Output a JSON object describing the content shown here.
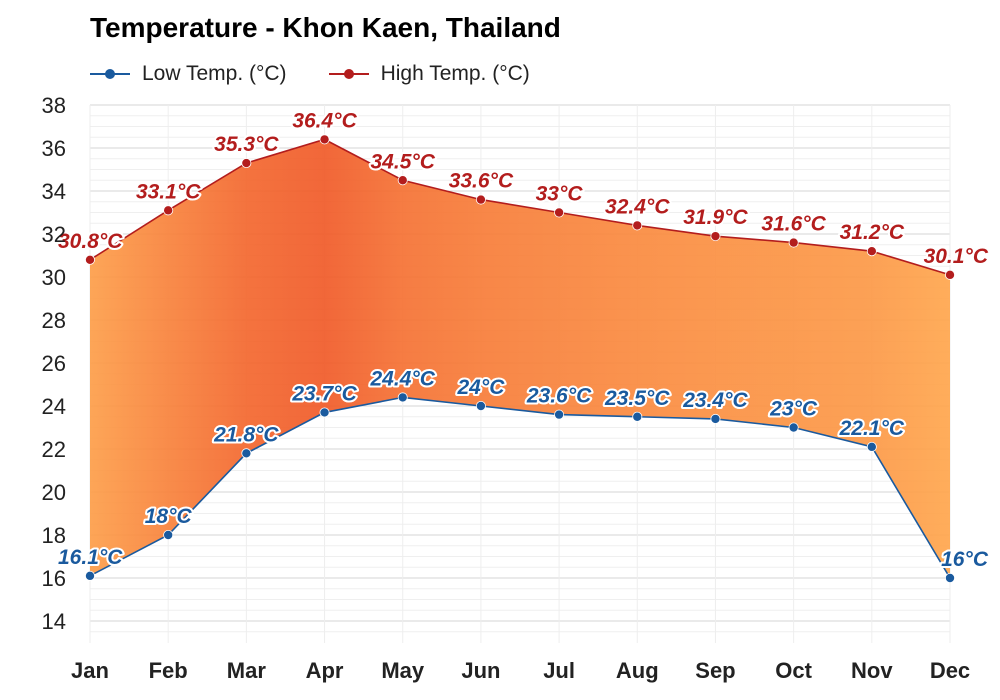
{
  "chart_data": {
    "type": "line",
    "title": "Temperature - Khon Kaen, Thailand",
    "categories": [
      "Jan",
      "Feb",
      "Mar",
      "Apr",
      "May",
      "Jun",
      "Jul",
      "Aug",
      "Sep",
      "Oct",
      "Nov",
      "Dec"
    ],
    "series": [
      {
        "name": "Low Temp. (°C)",
        "color": "#1a5a9e",
        "values": [
          16.1,
          18,
          21.8,
          23.7,
          24.4,
          24,
          23.6,
          23.5,
          23.4,
          23,
          22.1,
          16
        ],
        "labels": [
          "16.1°C",
          "18°C",
          "21.8°C",
          "23.7°C",
          "24.4°C",
          "24°C",
          "23.6°C",
          "23.5°C",
          "23.4°C",
          "23°C",
          "22.1°C",
          "16°C"
        ]
      },
      {
        "name": "High Temp. (°C)",
        "color": "#b31d1d",
        "values": [
          30.8,
          33.1,
          35.3,
          36.4,
          34.5,
          33.6,
          33,
          32.4,
          31.9,
          31.6,
          31.2,
          30.1
        ],
        "labels": [
          "30.8°C",
          "33.1°C",
          "35.3°C",
          "36.4°C",
          "34.5°C",
          "33.6°C",
          "33°C",
          "32.4°C",
          "31.9°C",
          "31.6°C",
          "31.2°C",
          "30.1°C"
        ]
      }
    ],
    "yticks": [
      14,
      16,
      18,
      20,
      22,
      24,
      26,
      28,
      30,
      32,
      34,
      36,
      38
    ],
    "ylim": [
      13,
      38
    ],
    "xlabel": "",
    "ylabel": "",
    "legend": "top-left",
    "grid": true,
    "band_color_hot": "#f05a28",
    "band_color_warm": "#ffa64d"
  }
}
